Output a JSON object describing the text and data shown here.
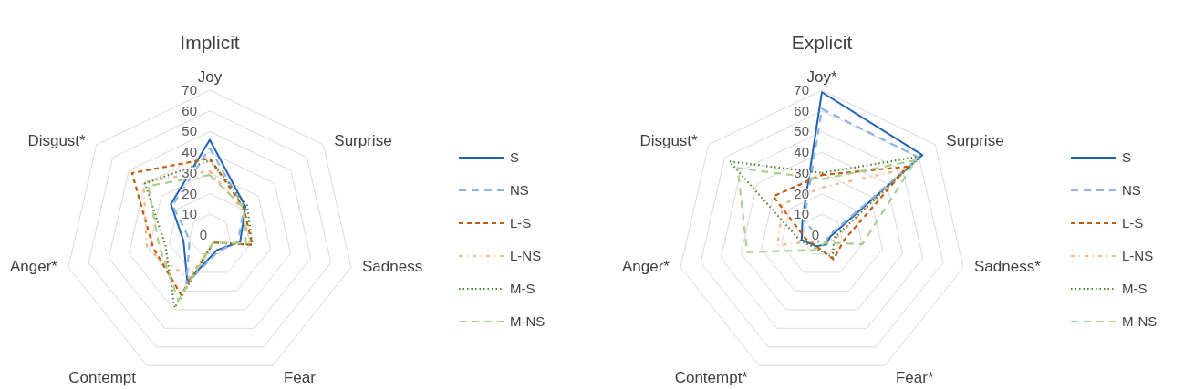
{
  "chart_data": [
    {
      "type": "radar",
      "title": "Implicit",
      "categories": [
        "Joy",
        "Surprise",
        "Sadness",
        "Fear",
        "Contempt",
        "Anger*",
        "Disgust*"
      ],
      "ylim": [
        0,
        70
      ],
      "yticks": [
        0,
        10,
        20,
        30,
        40,
        50,
        60,
        70
      ],
      "grid": true,
      "legend": "right",
      "series": [
        {
          "name": "S",
          "color": "#2062b4",
          "line_style": "solid",
          "values": [
            46,
            22,
            15,
            8,
            25,
            13,
            24
          ]
        },
        {
          "name": "NS",
          "color": "#8db4e2",
          "line_style": "dashed",
          "values": [
            42,
            21,
            14,
            9,
            26,
            10,
            23
          ]
        },
        {
          "name": "L-S",
          "color": "#c55a11",
          "line_style": "dashed",
          "values": [
            37,
            21,
            21,
            4,
            32,
            28,
            48
          ]
        },
        {
          "name": "L-NS",
          "color": "#f4b183",
          "line_style": "dashed",
          "values": [
            31,
            20,
            20,
            4,
            23,
            31,
            41
          ]
        },
        {
          "name": "M-S",
          "color": "#548235",
          "line_style": "dotted",
          "values": [
            36,
            23,
            21,
            4,
            39,
            22,
            40
          ]
        },
        {
          "name": "M-NS",
          "color": "#a9d18e",
          "line_style": "dashed",
          "values": [
            29,
            21,
            18,
            4,
            35,
            25,
            38
          ]
        }
      ]
    },
    {
      "type": "radar",
      "title": "Explicit",
      "categories": [
        "Joy*",
        "Surprise",
        "Sadness*",
        "Fear*",
        "Contempt*",
        "Anger*",
        "Disgust*"
      ],
      "ylim": [
        0,
        70
      ],
      "yticks": [
        0,
        10,
        20,
        30,
        40,
        50,
        60,
        70
      ],
      "grid": true,
      "legend": "right",
      "series": [
        {
          "name": "S",
          "color": "#2062b4",
          "line_style": "solid",
          "values": [
            69,
            62,
            4,
            5,
            6,
            10,
            12
          ]
        },
        {
          "name": "NS",
          "color": "#8db4e2",
          "line_style": "dashed",
          "values": [
            61,
            60,
            3,
            4,
            4,
            2,
            11
          ]
        },
        {
          "name": "L-S",
          "color": "#c55a11",
          "line_style": "dashed",
          "values": [
            29,
            53,
            11,
            13,
            6,
            8,
            30
          ]
        },
        {
          "name": "L-NS",
          "color": "#f4b183",
          "line_style": "dashed",
          "values": [
            23,
            51,
            7,
            4,
            3,
            22,
            24
          ]
        },
        {
          "name": "M-S",
          "color": "#548235",
          "line_style": "dotted",
          "values": [
            30,
            61,
            6,
            12,
            7,
            11,
            57
          ]
        },
        {
          "name": "M-NS",
          "color": "#a9d18e",
          "line_style": "dashed",
          "values": [
            27,
            58,
            20,
            4,
            8,
            37,
            52
          ]
        }
      ]
    }
  ]
}
